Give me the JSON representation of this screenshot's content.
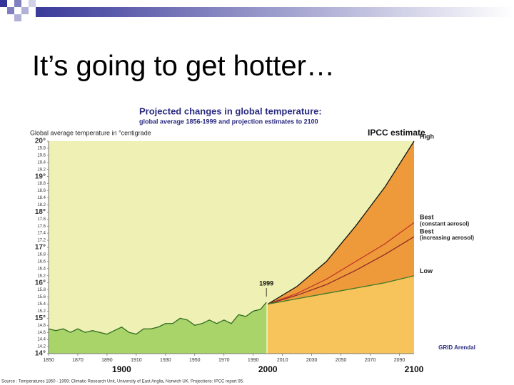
{
  "slide_title": "It’s going to get hotter…",
  "chart_data": {
    "type": "line",
    "title": "Projected changes in global temperature:",
    "subtitle": "global average 1856-1999 and projection estimates to 2100",
    "y_label": "Global average temperature in °centigrade",
    "legend_title": "IPCC estimate",
    "annotation": "1999",
    "source": "Source : Temperatures 1850 - 1999: Climatic Research Unit, University of East Anglia, Norwich UK. Projections: IPCC report 95.",
    "logo": "GRID Arendal",
    "xlim": [
      1850,
      2100
    ],
    "ylim": [
      14,
      20
    ],
    "xticks": [
      1850,
      1870,
      1890,
      1910,
      1930,
      1950,
      1970,
      1990,
      2010,
      2030,
      2050,
      2070,
      2090
    ],
    "xlabels_major": [
      1900,
      2000,
      2100
    ],
    "yticks": [
      {
        "value": 14,
        "label": "14°"
      },
      14.2,
      14.4,
      14.6,
      14.8,
      {
        "value": 15,
        "label": "15°"
      },
      15.2,
      15.4,
      15.6,
      15.8,
      {
        "value": 16,
        "label": "16°"
      },
      16.2,
      16.4,
      16.6,
      16.8,
      {
        "value": 17,
        "label": "17°"
      },
      17.2,
      17.4,
      17.6,
      17.8,
      {
        "value": 18,
        "label": "18°"
      },
      18.2,
      18.4,
      18.6,
      18.8,
      {
        "value": 19,
        "label": "19°"
      },
      19.2,
      19.4,
      19.6,
      19.8,
      {
        "value": 20,
        "label": "20°"
      }
    ],
    "series": [
      {
        "color": "#2e6b1e",
        "fill": "#a9d46a",
        "x": [
          1850,
          1855,
          1860,
          1865,
          1870,
          1875,
          1880,
          1885,
          1890,
          1895,
          1900,
          1905,
          1910,
          1915,
          1920,
          1925,
          1930,
          1935,
          1940,
          1945,
          1950,
          1955,
          1960,
          1965,
          1970,
          1975,
          1980,
          1985,
          1990,
          1995,
          1999
        ],
        "values": [
          14.7,
          14.65,
          14.7,
          14.6,
          14.7,
          14.6,
          14.65,
          14.6,
          14.55,
          14.65,
          14.75,
          14.6,
          14.55,
          14.7,
          14.7,
          14.75,
          14.85,
          14.85,
          15.0,
          14.95,
          14.8,
          14.85,
          14.95,
          14.85,
          14.95,
          14.85,
          15.1,
          15.05,
          15.2,
          15.25,
          15.45
        ]
      },
      {
        "name": "High",
        "color": "#111111",
        "fill": "#ef9a3a",
        "x": [
          2000,
          2020,
          2040,
          2060,
          2080,
          2100
        ],
        "values": [
          15.4,
          15.9,
          16.6,
          17.6,
          18.7,
          20.0
        ]
      },
      {
        "name": "Best",
        "note": "(constant aerosol)",
        "color": "#c0392b",
        "x": [
          2000,
          2020,
          2040,
          2060,
          2080,
          2100
        ],
        "values": [
          15.4,
          15.7,
          16.1,
          16.6,
          17.1,
          17.7
        ]
      },
      {
        "name": "Best",
        "note": "(increasing aerosol)",
        "color": "#8e2a2a",
        "x": [
          2000,
          2020,
          2040,
          2060,
          2080,
          2100
        ],
        "values": [
          15.4,
          15.65,
          15.95,
          16.35,
          16.8,
          17.3
        ]
      },
      {
        "name": "Low",
        "color": "#3d7a2b",
        "fill": "#f6c45a",
        "x": [
          2000,
          2020,
          2040,
          2060,
          2080,
          2100
        ],
        "values": [
          15.4,
          15.55,
          15.7,
          15.85,
          16.0,
          16.2
        ]
      }
    ]
  }
}
